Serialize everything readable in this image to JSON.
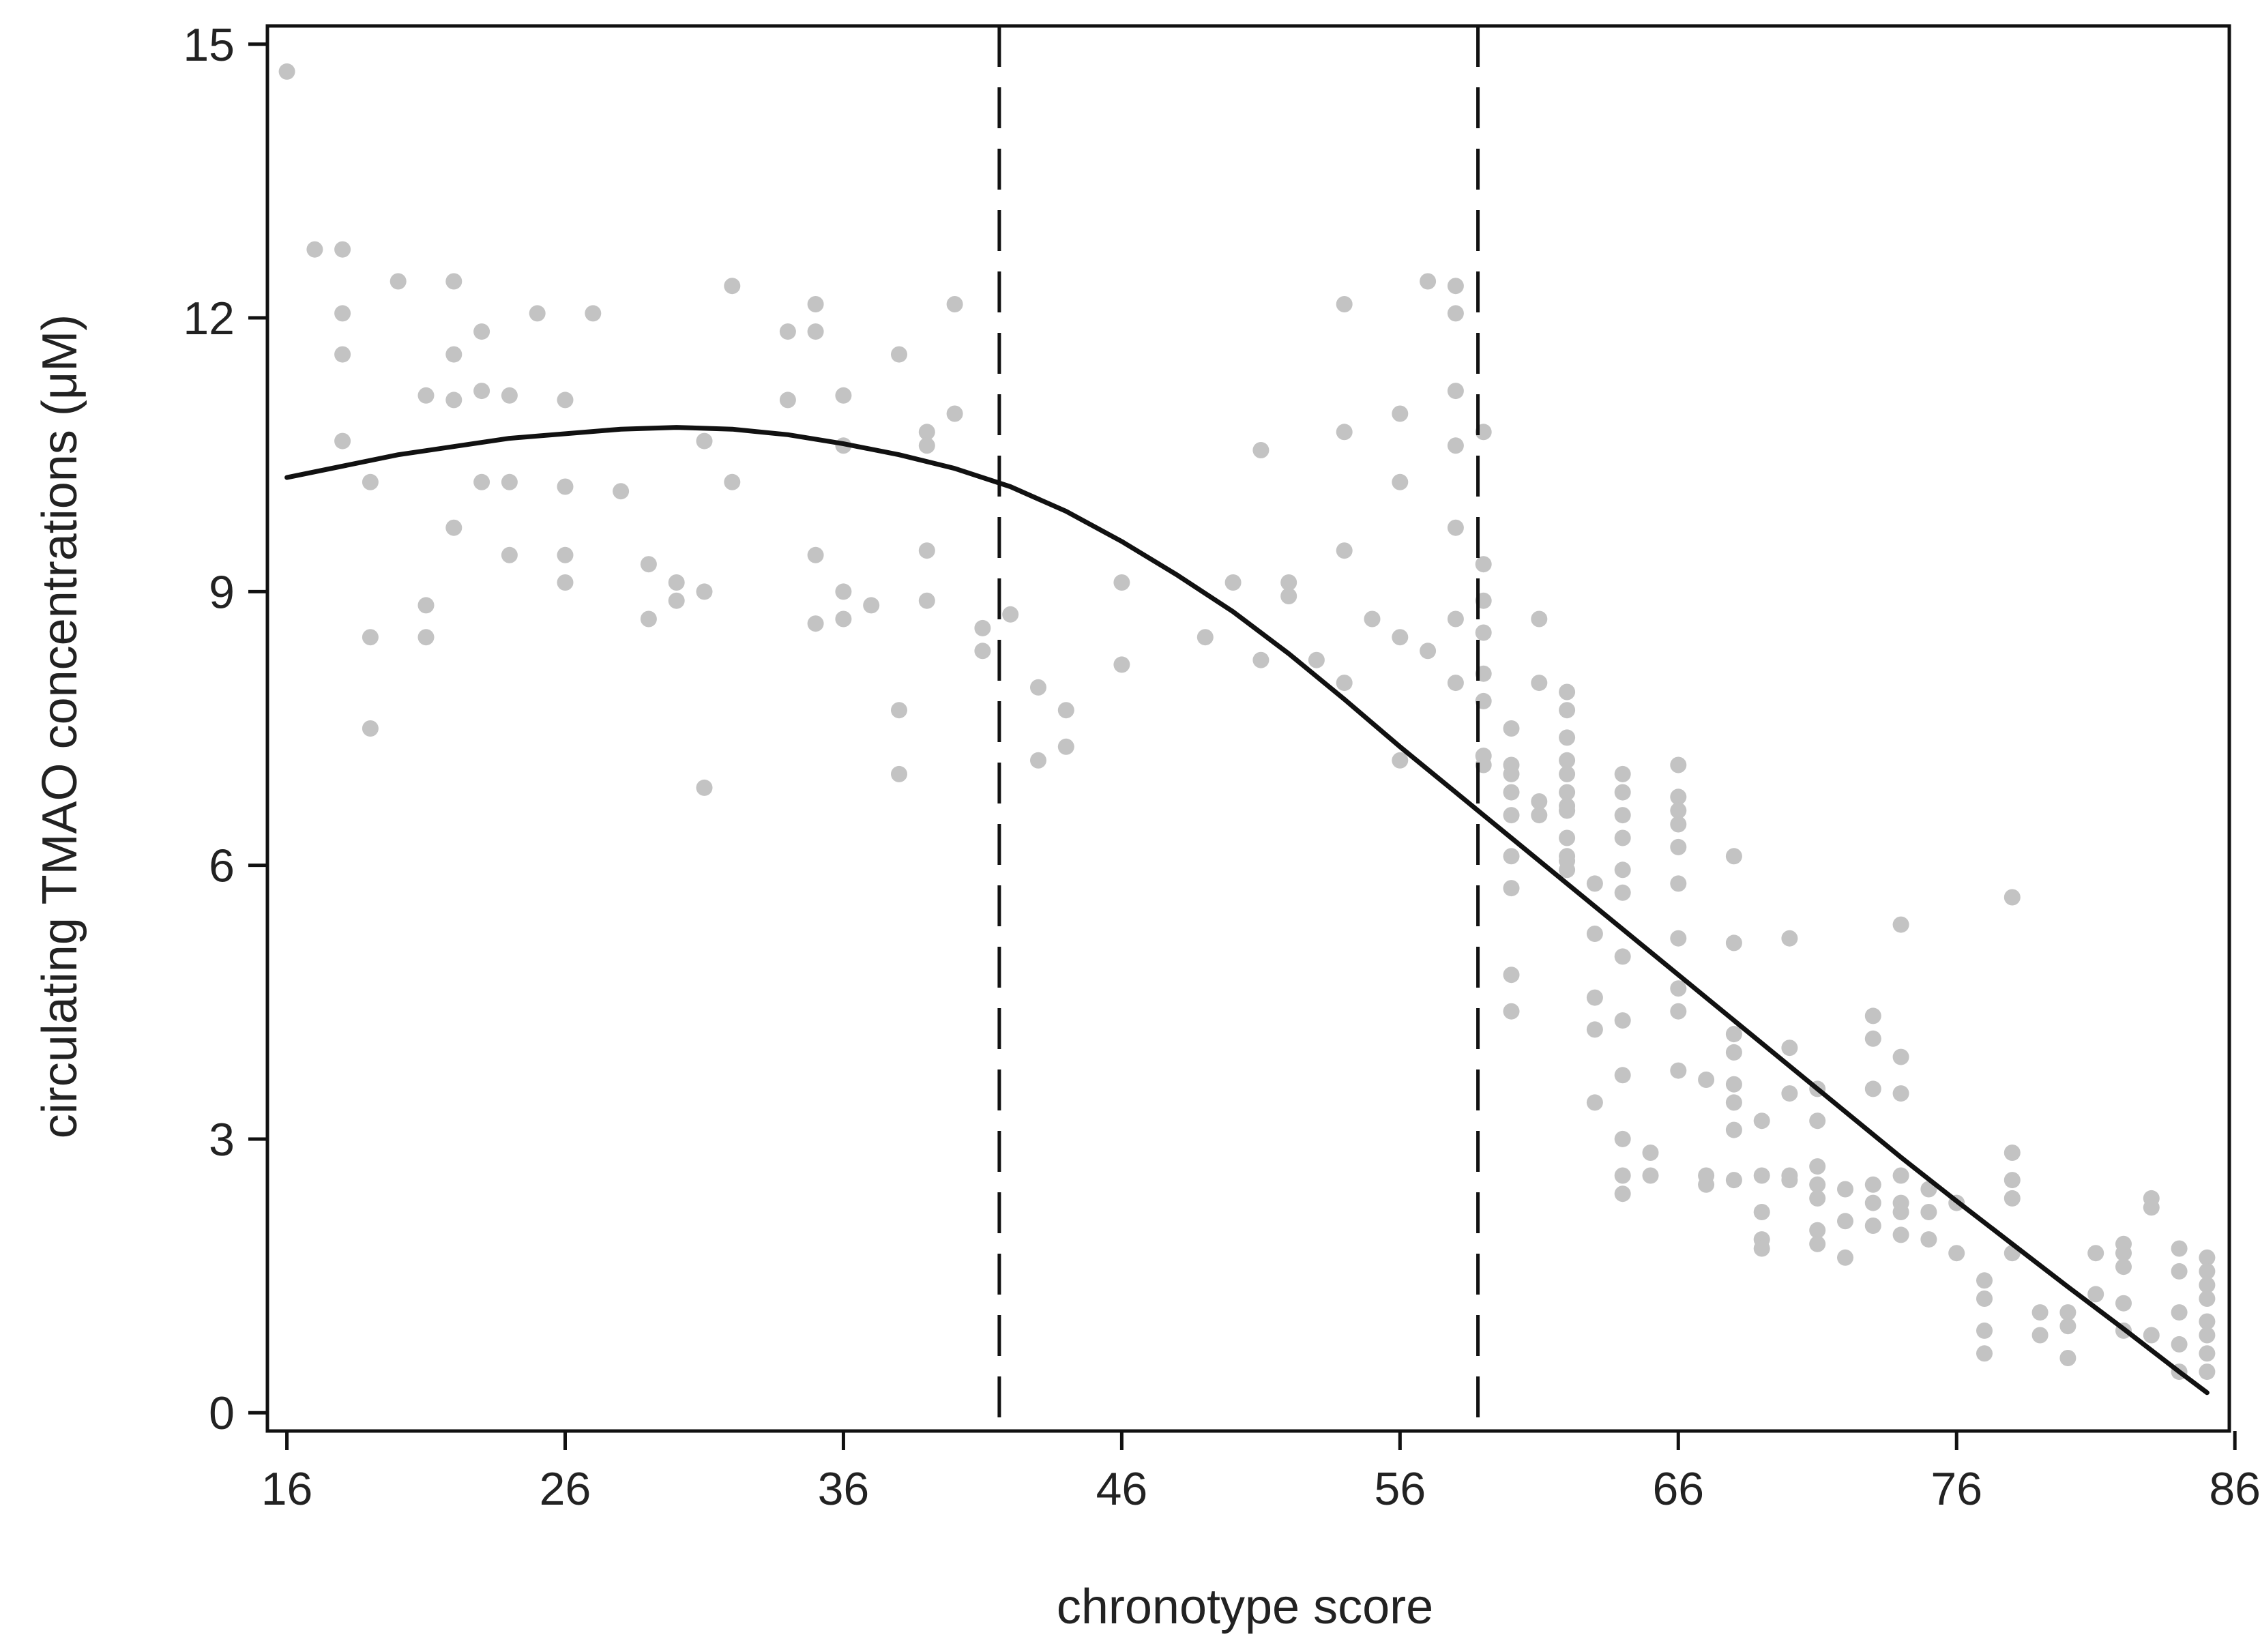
{
  "chart_data": {
    "type": "scatter",
    "title": "",
    "xlabel": "chronotype score",
    "ylabel": "circulating TMAO concentrations (μM)",
    "xlim": [
      15.3,
      85.8
    ],
    "ylim": [
      -0.2,
      15.2
    ],
    "x_ticks": [
      16,
      26,
      36,
      46,
      56,
      66,
      76,
      86
    ],
    "y_ticks": [
      0,
      3,
      6,
      9,
      12,
      15
    ],
    "grid": false,
    "legend": "none",
    "colors": {
      "points": "#c3c3c3",
      "curve": "#111111",
      "reference_lines": "#111111",
      "axes": "#111111"
    },
    "reference_lines_x": [
      41.6,
      58.8
    ],
    "curve": {
      "x": [
        16,
        20,
        24,
        28,
        30,
        32,
        34,
        36,
        38,
        40,
        42,
        44,
        46,
        48,
        50,
        52,
        54,
        56,
        58,
        59,
        60,
        62,
        64,
        66,
        68,
        70,
        72,
        74,
        76,
        78,
        80,
        82,
        84,
        85
      ],
      "y": [
        10.25,
        10.5,
        10.68,
        10.78,
        10.8,
        10.78,
        10.72,
        10.62,
        10.5,
        10.35,
        10.15,
        9.88,
        9.55,
        9.18,
        8.78,
        8.32,
        7.82,
        7.3,
        6.8,
        6.55,
        6.3,
        5.8,
        5.3,
        4.8,
        4.3,
        3.8,
        3.3,
        2.8,
        2.32,
        1.85,
        1.38,
        0.92,
        0.45,
        0.22
      ]
    },
    "points": {
      "x": [
        16,
        17,
        18,
        18,
        18,
        18,
        19,
        19,
        19,
        20,
        21,
        21,
        21,
        22,
        22,
        22,
        22,
        23,
        23,
        23,
        24,
        24,
        24,
        25,
        26,
        26,
        26,
        26,
        27,
        28,
        29,
        29,
        30,
        30,
        31,
        31,
        31,
        32,
        32,
        34,
        34,
        35,
        35,
        35,
        35,
        36,
        36,
        36,
        36,
        37,
        38,
        38,
        38,
        39,
        39,
        39,
        39,
        40,
        40,
        41,
        41,
        42,
        43,
        43,
        44,
        44,
        46,
        46,
        49,
        50,
        51,
        51,
        52,
        52,
        53,
        54,
        54,
        54,
        54,
        55,
        56,
        56,
        56,
        56,
        57,
        57,
        58,
        58,
        58,
        58,
        58,
        58,
        58,
        59,
        59,
        59,
        59,
        59,
        59,
        59,
        59,
        60,
        60,
        60,
        60,
        60,
        60,
        60,
        60,
        60,
        61,
        61,
        61,
        61,
        62,
        62,
        62,
        62,
        62,
        62,
        62,
        62,
        62,
        62,
        62,
        62,
        62,
        63,
        63,
        63,
        63,
        63,
        64,
        64,
        64,
        64,
        64,
        64,
        64,
        64,
        64,
        64,
        64,
        64,
        65,
        65,
        66,
        66,
        66,
        66,
        66,
        66,
        66,
        66,
        66,
        66,
        67,
        67,
        67,
        68,
        68,
        68,
        68,
        68,
        68,
        68,
        68,
        69,
        69,
        69,
        69,
        69,
        70,
        70,
        70,
        70,
        70,
        71,
        71,
        71,
        71,
        71,
        71,
        71,
        72,
        72,
        72,
        73,
        73,
        73,
        73,
        73,
        73,
        74,
        74,
        74,
        74,
        74,
        74,
        74,
        75,
        75,
        75,
        76,
        76,
        77,
        77,
        77,
        77,
        78,
        78,
        78,
        78,
        78,
        79,
        79,
        80,
        80,
        80,
        81,
        81,
        82,
        82,
        82,
        82,
        82,
        83,
        83,
        83,
        84,
        84,
        84,
        84,
        84,
        85,
        85,
        85,
        85,
        85,
        85,
        85,
        85
      ],
      "y": [
        14.7,
        12.75,
        12.75,
        12.05,
        11.6,
        10.65,
        10.2,
        8.5,
        7.5,
        12.4,
        11.15,
        8.85,
        8.5,
        12.4,
        11.6,
        11.1,
        9.7,
        11.85,
        11.2,
        10.2,
        11.15,
        10.2,
        9.4,
        12.05,
        11.1,
        10.15,
        9.4,
        9.1,
        12.05,
        10.1,
        9.3,
        8.7,
        9.1,
        8.9,
        10.65,
        9,
        6.85,
        12.35,
        10.2,
        11.85,
        11.1,
        12.15,
        11.85,
        9.4,
        8.65,
        11.15,
        10.6,
        9,
        8.7,
        8.85,
        11.6,
        7.7,
        7,
        10.75,
        10.6,
        9.45,
        8.9,
        12.15,
        10.95,
        8.6,
        8.35,
        8.75,
        7.95,
        7.15,
        7.7,
        7.3,
        9.1,
        8.2,
        8.5,
        9.1,
        10.55,
        8.25,
        9.1,
        8.95,
        8.25,
        12.15,
        10.75,
        9.45,
        8,
        8.7,
        10.95,
        10.2,
        8.5,
        7.15,
        12.4,
        8.35,
        12.05,
        10.6,
        9.7,
        8.7,
        8,
        12.35,
        11.2,
        10.75,
        9.3,
        8.9,
        8.55,
        8.1,
        7.8,
        7.2,
        7.1,
        7.1,
        6.8,
        6.55,
        6.1,
        5.75,
        4.8,
        4.4,
        7.5,
        7,
        6.7,
        6.55,
        8.7,
        8,
        7.9,
        7.7,
        7.4,
        7.15,
        7,
        6.8,
        6.65,
        6.6,
        6.3,
        6.1,
        5.95,
        6.6,
        6.05,
        5.8,
        5.25,
        4.55,
        4.2,
        3.4,
        7,
        6.8,
        6.55,
        6.3,
        5.95,
        5.7,
        5,
        4.3,
        3.7,
        3,
        2.6,
        2.4,
        2.85,
        2.6,
        7.1,
        6.75,
        6.6,
        6.45,
        6.2,
        5.8,
        5.2,
        4.65,
        4.4,
        3.75,
        3.65,
        2.6,
        2.5,
        6.1,
        5.15,
        4.15,
        3.95,
        3.6,
        3.4,
        3.1,
        2.55,
        3.2,
        2.6,
        2.2,
        1.9,
        1.8,
        5.2,
        4,
        3.5,
        2.6,
        2.55,
        3.55,
        3.2,
        2.7,
        2.5,
        2.35,
        2,
        1.85,
        2.45,
        2.1,
        1.7,
        4.35,
        4.1,
        3.55,
        2.5,
        2.3,
        2.05,
        5.35,
        3.9,
        3.5,
        2.6,
        2.3,
        2.2,
        1.95,
        2.45,
        2.2,
        1.9,
        2.3,
        1.75,
        1.45,
        1.25,
        0.9,
        0.65,
        5.65,
        2.85,
        2.55,
        2.35,
        1.75,
        1.1,
        0.85,
        1.1,
        0.95,
        0.6,
        1.75,
        1.3,
        1.85,
        1.75,
        1.6,
        1.2,
        0.9,
        2.35,
        2.25,
        0.85,
        1.8,
        1.55,
        1.1,
        0.75,
        0.45,
        1.7,
        1.55,
        1.4,
        1.25,
        1,
        0.85,
        0.65,
        0.45
      ]
    }
  }
}
